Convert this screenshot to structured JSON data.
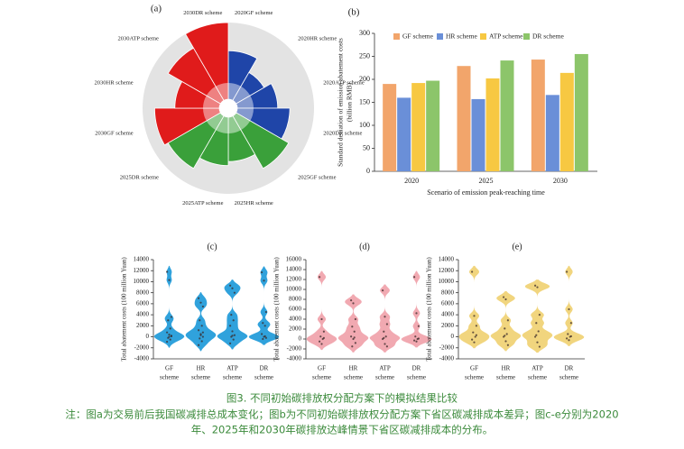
{
  "chart_data": [
    {
      "type": "polar",
      "title": "(a)",
      "categories": [
        "2020GF scheme",
        "2020HR scheme",
        "2020ATP scheme",
        "2020DR scheme",
        "2025GF scheme",
        "2025HR scheme",
        "2025ATP scheme",
        "2025DR scheme",
        "2030GF scheme",
        "2030HR scheme",
        "2030ATP scheme",
        "2030DR scheme"
      ],
      "values": [
        60,
        40,
        50,
        65,
        75,
        55,
        60,
        75,
        80,
        55,
        75,
        95
      ],
      "colors": [
        "#1f45a8",
        "#1f45a8",
        "#1f45a8",
        "#1f45a8",
        "#3aa03a",
        "#3aa03a",
        "#3aa03a",
        "#3aa03a",
        "#e01b1b",
        "#e01b1b",
        "#e01b1b",
        "#e01b1b"
      ],
      "rlim": [
        0,
        95
      ]
    },
    {
      "type": "bar",
      "title": "(b)",
      "categories": [
        "2020",
        "2025",
        "2030"
      ],
      "series": [
        {
          "name": "GF scheme",
          "color": "#f2a56b",
          "values": [
            190,
            229,
            243
          ]
        },
        {
          "name": "HR scheme",
          "color": "#6a8fd8",
          "values": [
            160,
            157,
            166
          ]
        },
        {
          "name": "ATP scheme",
          "color": "#f7c842",
          "values": [
            192,
            202,
            214
          ]
        },
        {
          "name": "DR scheme",
          "color": "#8cc56a",
          "values": [
            197,
            241,
            255
          ]
        }
      ],
      "ylabel": [
        "Standard deviation of emission abatement costs",
        "(billion RMB)"
      ],
      "xlabel": "Scenario of emission peak-reaching time",
      "ylim": [
        0,
        300
      ],
      "yticks": [
        0,
        50,
        100,
        150,
        200,
        250,
        300
      ]
    },
    {
      "type": "violin",
      "title": "(c)",
      "color": "#1a98d8",
      "categories": [
        [
          "GF",
          "scheme"
        ],
        [
          "HR",
          "scheme"
        ],
        [
          "ATP",
          "scheme"
        ],
        [
          "DR",
          "scheme"
        ]
      ],
      "values": [
        [
          11800,
          10300,
          3600,
          3000,
          1500,
          800,
          400,
          100,
          -200,
          -500,
          -900,
          0,
          200
        ],
        [
          7000,
          6200,
          5500,
          3000,
          2000,
          1200,
          500,
          0,
          -300,
          -800,
          -1500,
          300,
          800
        ],
        [
          9300,
          8800,
          8000,
          4000,
          3000,
          2000,
          1000,
          300,
          0,
          -500,
          -1200,
          200
        ],
        [
          11700,
          10200,
          4500,
          2500,
          2000,
          500,
          0,
          -200,
          -400,
          100
        ]
      ],
      "ylabel": "Total abatement costs (100 million Yuan)",
      "ylim": [
        -4000,
        14000
      ],
      "yticks": [
        -4000,
        -2000,
        0,
        2000,
        4000,
        6000,
        8000,
        10000,
        12000,
        14000
      ]
    },
    {
      "type": "violin",
      "title": "(d)",
      "color": "#f0a0a8",
      "categories": [
        [
          "GF",
          "scheme"
        ],
        [
          "HR",
          "scheme"
        ],
        [
          "ATP",
          "scheme"
        ],
        [
          "DR",
          "scheme"
        ]
      ],
      "values": [
        [
          12500,
          4000,
          1500,
          500,
          0,
          -500,
          -1000,
          200
        ],
        [
          7800,
          7200,
          4000,
          2500,
          1500,
          500,
          0,
          -800,
          -1500,
          300
        ],
        [
          9800,
          4500,
          3000,
          1500,
          500,
          0,
          -1000,
          -1500,
          200
        ],
        [
          12500,
          5200,
          2600,
          500,
          0,
          -300,
          -500,
          100
        ]
      ],
      "ylabel": "Total abatement costs (100 million Yuan)",
      "ylim": [
        -4000,
        16000
      ],
      "yticks": [
        -4000,
        -2000,
        0,
        2000,
        4000,
        6000,
        8000,
        10000,
        12000,
        14000,
        16000
      ]
    },
    {
      "type": "violin",
      "title": "(e)",
      "color": "#f0d070",
      "categories": [
        [
          "GF",
          "scheme"
        ],
        [
          "HR",
          "scheme"
        ],
        [
          "ATP",
          "scheme"
        ],
        [
          "DR",
          "scheme"
        ]
      ],
      "values": [
        [
          11800,
          3800,
          2000,
          800,
          0,
          -500,
          -1000,
          300
        ],
        [
          7200,
          6800,
          3000,
          1500,
          500,
          0,
          -800,
          -1500,
          200
        ],
        [
          9300,
          9000,
          4000,
          2500,
          1000,
          0,
          -1000,
          -1800,
          300
        ],
        [
          11800,
          5000,
          2500,
          500,
          0,
          -300,
          -600,
          100
        ]
      ],
      "ylabel": "Total abatement costs (100 million Yuan)",
      "ylim": [
        -4000,
        14000
      ],
      "yticks": [
        -4000,
        -2000,
        0,
        2000,
        4000,
        6000,
        8000,
        10000,
        12000,
        14000
      ]
    }
  ],
  "caption": {
    "title": "图3. 不同初始碳排放权分配方案下的模拟结果比较",
    "note": [
      "注：图a为交易前后我国碳减排总成本变化；图b为不同初始碳排放权分配方案下省区碳减排成本差异；图c-e分别为2020",
      "年、2025年和2030年碳排放达峰情景下省区碳减排成本的分布。"
    ]
  }
}
